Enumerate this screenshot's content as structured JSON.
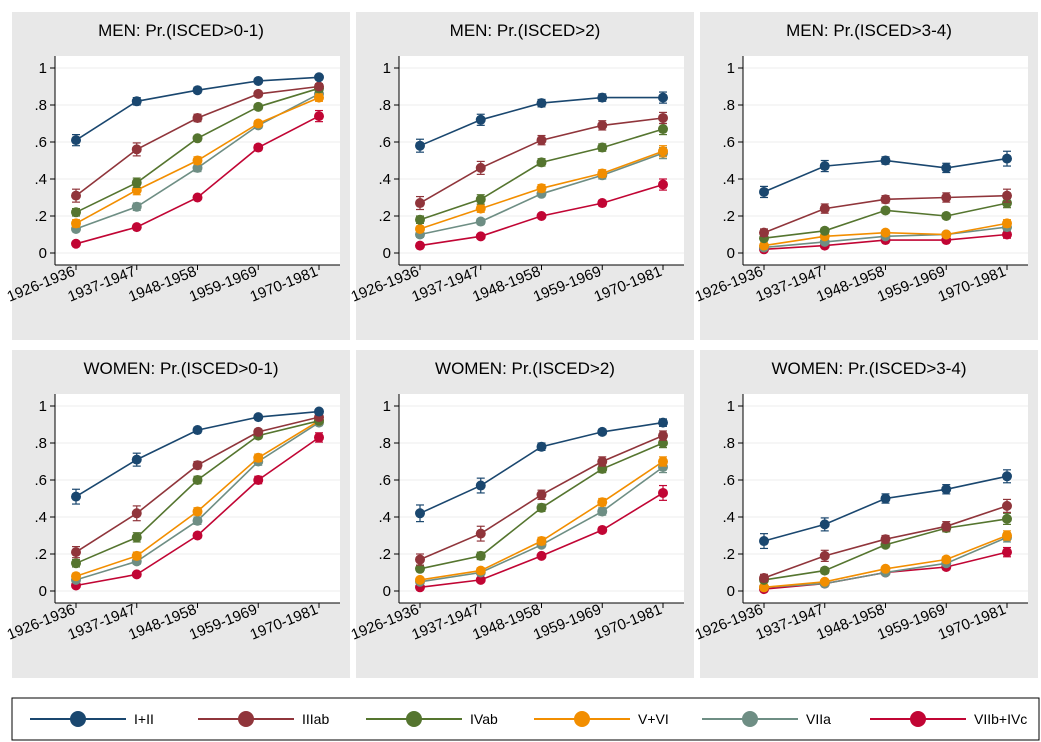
{
  "chart_data": [
    {
      "type": "line",
      "title": "MEN: Pr.(ISCED>0-1)",
      "categories": [
        "1926-1936",
        "1937-1947",
        "1948-1958",
        "1959-1969",
        "1970-1981"
      ],
      "yticks": [
        "0",
        ".2",
        ".4",
        ".6",
        ".8",
        "1"
      ],
      "ylim": [
        0,
        1
      ],
      "series": [
        {
          "name": "I+II",
          "values": [
            0.61,
            0.82,
            0.88,
            0.93,
            0.95
          ],
          "err": [
            0.03,
            0.02,
            0.015,
            0.01,
            0.01
          ]
        },
        {
          "name": "IIIab",
          "values": [
            0.31,
            0.56,
            0.73,
            0.86,
            0.9
          ],
          "err": [
            0.035,
            0.035,
            0.02,
            0.015,
            0.015
          ]
        },
        {
          "name": "IVab",
          "values": [
            0.22,
            0.38,
            0.62,
            0.79,
            0.89
          ],
          "err": [
            0.02,
            0.025,
            0.015,
            0.015,
            0.02
          ]
        },
        {
          "name": "V+VI",
          "values": [
            0.16,
            0.34,
            0.5,
            0.7,
            0.84
          ],
          "err": [
            0.02,
            0.025,
            0.02,
            0.015,
            0.02
          ]
        },
        {
          "name": "VIIa",
          "values": [
            0.13,
            0.25,
            0.46,
            0.69,
            0.86
          ],
          "err": [
            0.015,
            0.02,
            0.02,
            0.015,
            0.02
          ]
        },
        {
          "name": "VIIb+IVc",
          "values": [
            0.05,
            0.14,
            0.3,
            0.57,
            0.74
          ],
          "err": [
            0.01,
            0.01,
            0.01,
            0.015,
            0.03
          ]
        }
      ]
    },
    {
      "type": "line",
      "title": "MEN: Pr.(ISCED>2)",
      "categories": [
        "1926-1936",
        "1937-1947",
        "1948-1958",
        "1959-1969",
        "1970-1981"
      ],
      "yticks": [
        "0",
        ".2",
        ".4",
        ".6",
        ".8",
        "1"
      ],
      "ylim": [
        0,
        1
      ],
      "series": [
        {
          "name": "I+II",
          "values": [
            0.58,
            0.72,
            0.81,
            0.84,
            0.84
          ],
          "err": [
            0.035,
            0.03,
            0.02,
            0.02,
            0.03
          ]
        },
        {
          "name": "IIIab",
          "values": [
            0.27,
            0.46,
            0.61,
            0.69,
            0.73
          ],
          "err": [
            0.035,
            0.035,
            0.025,
            0.025,
            0.03
          ]
        },
        {
          "name": "IVab",
          "values": [
            0.18,
            0.29,
            0.49,
            0.57,
            0.67
          ],
          "err": [
            0.02,
            0.025,
            0.02,
            0.02,
            0.03
          ]
        },
        {
          "name": "V+VI",
          "values": [
            0.13,
            0.24,
            0.35,
            0.43,
            0.55
          ],
          "err": [
            0.015,
            0.02,
            0.02,
            0.02,
            0.03
          ]
        },
        {
          "name": "VIIa",
          "values": [
            0.1,
            0.17,
            0.32,
            0.42,
            0.54
          ],
          "err": [
            0.015,
            0.015,
            0.015,
            0.02,
            0.03
          ]
        },
        {
          "name": "VIIb+IVc",
          "values": [
            0.04,
            0.09,
            0.2,
            0.27,
            0.37
          ],
          "err": [
            0.01,
            0.01,
            0.01,
            0.015,
            0.03
          ]
        }
      ]
    },
    {
      "type": "line",
      "title": "MEN: Pr.(ISCED>3-4)",
      "categories": [
        "1926-1936",
        "1937-1947",
        "1948-1958",
        "1959-1969",
        "1970-1981"
      ],
      "yticks": [
        "0",
        ".2",
        ".4",
        ".6",
        ".8",
        "1"
      ],
      "ylim": [
        0,
        1
      ],
      "series": [
        {
          "name": "I+II",
          "values": [
            0.33,
            0.47,
            0.5,
            0.46,
            0.51
          ],
          "err": [
            0.03,
            0.03,
            0.02,
            0.025,
            0.04
          ]
        },
        {
          "name": "IIIab",
          "values": [
            0.11,
            0.24,
            0.29,
            0.3,
            0.31
          ],
          "err": [
            0.02,
            0.025,
            0.02,
            0.025,
            0.035
          ]
        },
        {
          "name": "IVab",
          "values": [
            0.08,
            0.12,
            0.23,
            0.2,
            0.27
          ],
          "err": [
            0.015,
            0.015,
            0.015,
            0.015,
            0.025
          ]
        },
        {
          "name": "V+VI",
          "values": [
            0.04,
            0.09,
            0.11,
            0.1,
            0.16
          ],
          "err": [
            0.01,
            0.015,
            0.01,
            0.01,
            0.02
          ]
        },
        {
          "name": "VIIa",
          "values": [
            0.03,
            0.06,
            0.09,
            0.1,
            0.14
          ],
          "err": [
            0.01,
            0.01,
            0.01,
            0.01,
            0.02
          ]
        },
        {
          "name": "VIIb+IVc",
          "values": [
            0.02,
            0.04,
            0.07,
            0.07,
            0.1
          ],
          "err": [
            0.005,
            0.01,
            0.01,
            0.01,
            0.02
          ]
        }
      ]
    },
    {
      "type": "line",
      "title": "WOMEN: Pr.(ISCED>0-1)",
      "categories": [
        "1926-1936",
        "1937-1947",
        "1948-1958",
        "1959-1969",
        "1970-1981"
      ],
      "yticks": [
        "0",
        ".2",
        ".4",
        ".6",
        ".8",
        "1"
      ],
      "ylim": [
        0,
        1
      ],
      "series": [
        {
          "name": "I+II",
          "values": [
            0.51,
            0.71,
            0.87,
            0.94,
            0.97
          ],
          "err": [
            0.04,
            0.035,
            0.015,
            0.01,
            0.01
          ]
        },
        {
          "name": "IIIab",
          "values": [
            0.21,
            0.42,
            0.68,
            0.86,
            0.94
          ],
          "err": [
            0.03,
            0.04,
            0.02,
            0.015,
            0.01
          ]
        },
        {
          "name": "IVab",
          "values": [
            0.15,
            0.29,
            0.6,
            0.84,
            0.92
          ],
          "err": [
            0.02,
            0.025,
            0.02,
            0.015,
            0.015
          ]
        },
        {
          "name": "V+VI",
          "values": [
            0.08,
            0.19,
            0.43,
            0.72,
            0.92
          ],
          "err": [
            0.015,
            0.02,
            0.02,
            0.02,
            0.015
          ]
        },
        {
          "name": "VIIa",
          "values": [
            0.06,
            0.16,
            0.38,
            0.7,
            0.91
          ],
          "err": [
            0.01,
            0.015,
            0.02,
            0.02,
            0.015
          ]
        },
        {
          "name": "VIIb+IVc",
          "values": [
            0.03,
            0.09,
            0.3,
            0.6,
            0.83
          ],
          "err": [
            0.01,
            0.01,
            0.015,
            0.02,
            0.025
          ]
        }
      ]
    },
    {
      "type": "line",
      "title": "WOMEN: Pr.(ISCED>2)",
      "categories": [
        "1926-1936",
        "1937-1947",
        "1948-1958",
        "1959-1969",
        "1970-1981"
      ],
      "yticks": [
        "0",
        ".2",
        ".4",
        ".6",
        ".8",
        "1"
      ],
      "ylim": [
        0,
        1
      ],
      "series": [
        {
          "name": "I+II",
          "values": [
            0.42,
            0.57,
            0.78,
            0.86,
            0.91
          ],
          "err": [
            0.045,
            0.04,
            0.02,
            0.015,
            0.02
          ]
        },
        {
          "name": "IIIab",
          "values": [
            0.17,
            0.31,
            0.52,
            0.7,
            0.84
          ],
          "err": [
            0.03,
            0.04,
            0.025,
            0.025,
            0.025
          ]
        },
        {
          "name": "IVab",
          "values": [
            0.12,
            0.19,
            0.45,
            0.66,
            0.8
          ],
          "err": [
            0.015,
            0.02,
            0.02,
            0.02,
            0.025
          ]
        },
        {
          "name": "V+VI",
          "values": [
            0.06,
            0.11,
            0.27,
            0.48,
            0.7
          ],
          "err": [
            0.01,
            0.015,
            0.02,
            0.02,
            0.025
          ]
        },
        {
          "name": "VIIa",
          "values": [
            0.05,
            0.1,
            0.25,
            0.43,
            0.67
          ],
          "err": [
            0.01,
            0.01,
            0.015,
            0.02,
            0.03
          ]
        },
        {
          "name": "VIIb+IVc",
          "values": [
            0.02,
            0.06,
            0.19,
            0.33,
            0.53
          ],
          "err": [
            0.005,
            0.01,
            0.01,
            0.015,
            0.04
          ]
        }
      ]
    },
    {
      "type": "line",
      "title": "WOMEN: Pr.(ISCED>3-4)",
      "categories": [
        "1926-1936",
        "1937-1947",
        "1948-1958",
        "1959-1969",
        "1970-1981"
      ],
      "yticks": [
        "0",
        ".2",
        ".4",
        ".6",
        ".8",
        "1"
      ],
      "ylim": [
        0,
        1
      ],
      "series": [
        {
          "name": "I+II",
          "values": [
            0.27,
            0.36,
            0.5,
            0.55,
            0.62
          ],
          "err": [
            0.04,
            0.035,
            0.025,
            0.025,
            0.035
          ]
        },
        {
          "name": "IIIab",
          "values": [
            0.07,
            0.19,
            0.28,
            0.35,
            0.46
          ],
          "err": [
            0.02,
            0.03,
            0.02,
            0.025,
            0.035
          ]
        },
        {
          "name": "IVab",
          "values": [
            0.06,
            0.11,
            0.25,
            0.34,
            0.39
          ],
          "err": [
            0.01,
            0.015,
            0.015,
            0.02,
            0.03
          ]
        },
        {
          "name": "V+VI",
          "values": [
            0.02,
            0.05,
            0.12,
            0.17,
            0.3
          ],
          "err": [
            0.005,
            0.01,
            0.01,
            0.015,
            0.025
          ]
        },
        {
          "name": "VIIa",
          "values": [
            0.02,
            0.04,
            0.1,
            0.15,
            0.29
          ],
          "err": [
            0.005,
            0.01,
            0.01,
            0.015,
            0.025
          ]
        },
        {
          "name": "VIIb+IVc",
          "values": [
            0.01,
            0.04,
            0.1,
            0.13,
            0.21
          ],
          "err": [
            0.005,
            0.01,
            0.01,
            0.015,
            0.025
          ]
        }
      ]
    }
  ],
  "legend": {
    "items": [
      {
        "label": "I+II",
        "color": "#1a476f"
      },
      {
        "label": "IIIab",
        "color": "#90353b"
      },
      {
        "label": "IVab",
        "color": "#55752f"
      },
      {
        "label": "V+VI",
        "color": "#f28e00"
      },
      {
        "label": "VIIa",
        "color": "#6e8e84"
      },
      {
        "label": "VIIb+IVc",
        "color": "#c10534"
      }
    ]
  }
}
